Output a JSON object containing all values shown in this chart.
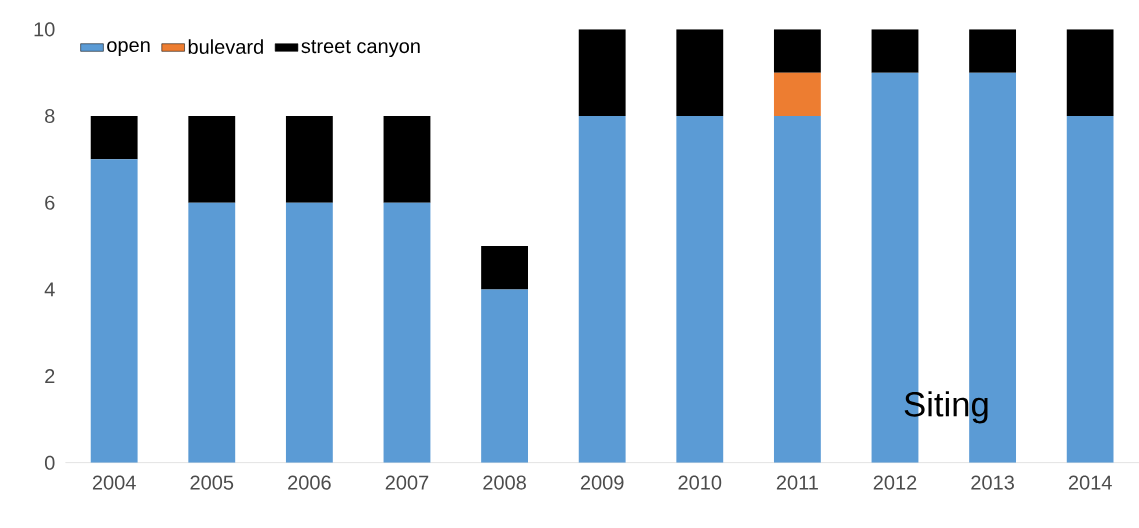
{
  "chart_data": {
    "type": "bar",
    "stacked": true,
    "categories": [
      "2004",
      "2005",
      "2006",
      "2007",
      "2008",
      "2009",
      "2010",
      "2011",
      "2012",
      "2013",
      "2014"
    ],
    "series": [
      {
        "name": "open",
        "color": "#5b9bd5",
        "values": [
          7,
          6,
          6,
          6,
          4,
          8,
          8,
          8,
          9,
          9,
          8
        ]
      },
      {
        "name": "bulevard",
        "color": "#ed7d31",
        "values": [
          0,
          0,
          0,
          0,
          0,
          0,
          0,
          1,
          0,
          0,
          0
        ]
      },
      {
        "name": "street canyon",
        "color": "#000000",
        "values": [
          1,
          2,
          2,
          2,
          1,
          2,
          2,
          1,
          1,
          1,
          2
        ]
      }
    ],
    "ylim": [
      0,
      10
    ],
    "yticks": [
      0,
      2,
      4,
      6,
      8,
      10
    ],
    "legend": "top left",
    "annotations": [
      "Siting"
    ]
  }
}
